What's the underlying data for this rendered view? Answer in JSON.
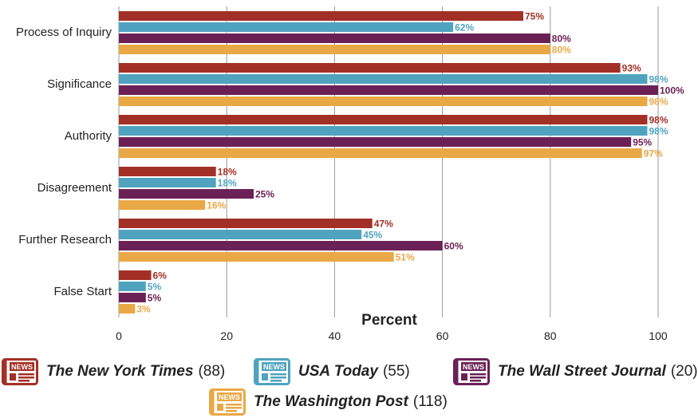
{
  "chart_data": {
    "type": "bar",
    "orientation": "horizontal",
    "categories": [
      "Process of Inquiry",
      "Significance",
      "Authority",
      "Disagreement",
      "Further Research",
      "False Start"
    ],
    "series": [
      {
        "name": "The New York Times",
        "count": "(88)",
        "color": "#A33026",
        "values": [
          75,
          93,
          98,
          18,
          47,
          6
        ]
      },
      {
        "name": "USA Today",
        "count": "(55)",
        "color": "#4FA3BF",
        "values": [
          62,
          98,
          98,
          18,
          45,
          5
        ]
      },
      {
        "name": "The Wall Street Journal",
        "count": "(20)",
        "color": "#6B2156",
        "values": [
          80,
          100,
          95,
          25,
          60,
          5
        ]
      },
      {
        "name": "The Washington Post",
        "count": "(118)",
        "color": "#E9A846",
        "values": [
          80,
          98,
          97,
          16,
          51,
          3
        ]
      }
    ],
    "value_suffix": "%",
    "xlabel": "Percent",
    "xlim": [
      0,
      100
    ],
    "xticks": [
      0,
      20,
      40,
      60,
      80,
      100
    ],
    "grid": true,
    "legend_position": "bottom",
    "legend_icon": "newspaper-icon",
    "legend_icon_text": "NEWS"
  }
}
